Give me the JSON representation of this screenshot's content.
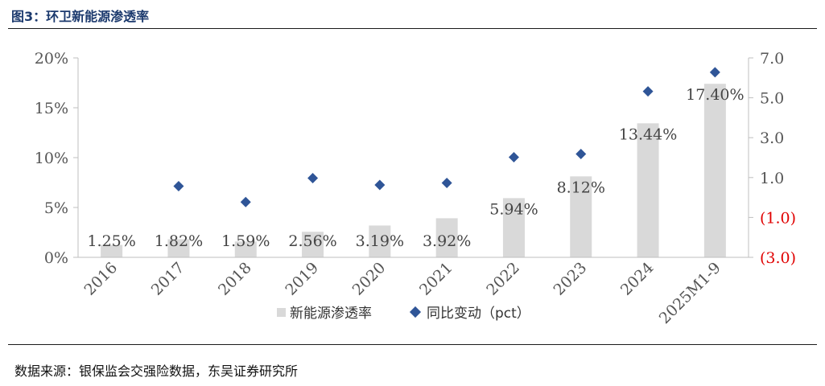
{
  "figure": {
    "title": "图3：环卫新能源渗透率",
    "source": "数据来源：银保监会交强险数据，东吴证券研究所"
  },
  "chart_data": {
    "type": "bar+scatter",
    "categories": [
      "2016",
      "2017",
      "2018",
      "2019",
      "2020",
      "2021",
      "2022",
      "2023",
      "2024",
      "2025M1-9"
    ],
    "series": [
      {
        "name": "新能源渗透率",
        "type": "bar",
        "axis": "left",
        "color": "#d9d9d9",
        "values": [
          1.25,
          1.82,
          1.59,
          2.56,
          3.19,
          3.92,
          5.94,
          8.12,
          13.44,
          17.4
        ],
        "labels": [
          "1.25%",
          "1.82%",
          "1.59%",
          "2.56%",
          "3.19%",
          "3.92%",
          "5.94%",
          "8.12%",
          "13.44%",
          "17.40%"
        ]
      },
      {
        "name": "同比变动（pct）",
        "type": "scatter",
        "axis": "right",
        "color": "#2f5597",
        "values": [
          null,
          0.57,
          -0.23,
          0.97,
          0.63,
          0.73,
          2.02,
          2.18,
          5.32,
          6.28
        ]
      }
    ],
    "y_left": {
      "min": 0,
      "max": 20,
      "ticks": [
        0,
        5,
        10,
        15,
        20
      ],
      "tick_labels": [
        "0%",
        "5%",
        "10%",
        "15%",
        "20%"
      ]
    },
    "y_right": {
      "min": -3,
      "max": 7,
      "ticks": [
        -3,
        -1,
        1,
        3,
        5,
        7
      ],
      "tick_labels": [
        "(3.0)",
        "(1.0)",
        "1.0",
        "3.0",
        "5.0",
        "7.0"
      ],
      "negative_color": "#e00000",
      "positive_color": "#555555"
    },
    "grid": false,
    "legend": "bottom"
  }
}
